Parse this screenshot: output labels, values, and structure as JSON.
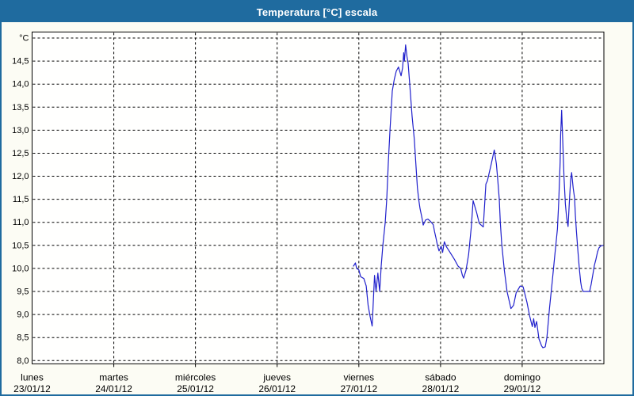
{
  "window": {
    "title": "Temperatura [°C] escala"
  },
  "colors": {
    "frame_blue": "#1f6b9f",
    "title_text": "#ffffff",
    "panel_background": "#fcfcf4",
    "plot_background": "#fffffe",
    "grid_black": "#000000",
    "series_blue": "#2020cc"
  },
  "chart_data": {
    "type": "line",
    "title": "Temperatura [°C] escala",
    "ylabel": "°C",
    "unit_label": "°C",
    "ylim": [
      7.93,
      15.13
    ],
    "y_grid_min": 8.0,
    "y_grid_max": 15.0,
    "y_grid_step": 0.5,
    "y_tick_labels": [
      "14,5",
      "14,0",
      "13,5",
      "13,0",
      "12,5",
      "12,0",
      "11,5",
      "11,0",
      "10,5",
      "10,0",
      "9,5",
      "9,0",
      "8,5",
      "8,0"
    ],
    "x_days": [
      {
        "name": "lunes",
        "date": "23/01/12"
      },
      {
        "name": "martes",
        "date": "24/01/12"
      },
      {
        "name": "miércoles",
        "date": "25/01/12"
      },
      {
        "name": "jueves",
        "date": "26/01/12"
      },
      {
        "name": "viernes",
        "date": "27/01/12"
      },
      {
        "name": "sábado",
        "date": "28/01/12"
      },
      {
        "name": "domingo",
        "date": "29/01/12"
      }
    ],
    "x_range_days": [
      0,
      7
    ],
    "grid": "dashed",
    "legend": "none",
    "series": [
      {
        "name": "Temperatura",
        "color": "#2020cc",
        "x_unit": "days since lunes 23/01/12 00:00",
        "points": [
          [
            3.934,
            10.05
          ],
          [
            3.958,
            10.12
          ],
          [
            3.973,
            10.0
          ],
          [
            4.0,
            9.97
          ],
          [
            4.022,
            9.82
          ],
          [
            4.061,
            9.78
          ],
          [
            4.09,
            9.62
          ],
          [
            4.114,
            9.2
          ],
          [
            4.139,
            8.95
          ],
          [
            4.163,
            8.75
          ],
          [
            4.192,
            9.85
          ],
          [
            4.211,
            9.5
          ],
          [
            4.233,
            9.9
          ],
          [
            4.255,
            9.5
          ],
          [
            4.274,
            10.05
          ],
          [
            4.294,
            10.5
          ],
          [
            4.323,
            11.0
          ],
          [
            4.342,
            11.5
          ],
          [
            4.361,
            12.3
          ],
          [
            4.381,
            13.0
          ],
          [
            4.41,
            13.85
          ],
          [
            4.434,
            14.1
          ],
          [
            4.458,
            14.28
          ],
          [
            4.485,
            14.37
          ],
          [
            4.517,
            14.18
          ],
          [
            4.536,
            14.35
          ],
          [
            4.549,
            14.68
          ],
          [
            4.558,
            14.5
          ],
          [
            4.573,
            14.85
          ],
          [
            4.589,
            14.6
          ],
          [
            4.604,
            14.45
          ],
          [
            4.623,
            14.0
          ],
          [
            4.652,
            13.3
          ],
          [
            4.679,
            12.8
          ],
          [
            4.701,
            12.2
          ],
          [
            4.717,
            11.75
          ],
          [
            4.733,
            11.5
          ],
          [
            4.749,
            11.3
          ],
          [
            4.772,
            11.1
          ],
          [
            4.788,
            10.94
          ],
          [
            4.817,
            11.05
          ],
          [
            4.846,
            11.07
          ],
          [
            4.878,
            11.02
          ],
          [
            4.911,
            10.95
          ],
          [
            4.927,
            10.8
          ],
          [
            4.943,
            10.67
          ],
          [
            4.963,
            10.5
          ],
          [
            4.982,
            10.38
          ],
          [
            5.008,
            10.48
          ],
          [
            5.026,
            10.35
          ],
          [
            5.047,
            10.58
          ],
          [
            5.072,
            10.47
          ],
          [
            5.105,
            10.38
          ],
          [
            5.137,
            10.29
          ],
          [
            5.169,
            10.2
          ],
          [
            5.215,
            10.05
          ],
          [
            5.247,
            10.0
          ],
          [
            5.268,
            9.85
          ],
          [
            5.283,
            9.79
          ],
          [
            5.312,
            9.96
          ],
          [
            5.344,
            10.3
          ],
          [
            5.377,
            10.9
          ],
          [
            5.399,
            11.47
          ],
          [
            5.441,
            11.22
          ],
          [
            5.474,
            10.98
          ],
          [
            5.523,
            10.9
          ],
          [
            5.555,
            11.83
          ],
          [
            5.574,
            11.9
          ],
          [
            5.62,
            12.26
          ],
          [
            5.658,
            12.57
          ],
          [
            5.684,
            12.26
          ],
          [
            5.7,
            11.94
          ],
          [
            5.719,
            11.5
          ],
          [
            5.732,
            11.0
          ],
          [
            5.749,
            10.53
          ],
          [
            5.781,
            9.96
          ],
          [
            5.814,
            9.5
          ],
          [
            5.862,
            9.13
          ],
          [
            5.894,
            9.2
          ],
          [
            5.926,
            9.47
          ],
          [
            5.975,
            9.62
          ],
          [
            6.011,
            9.6
          ],
          [
            6.059,
            9.26
          ],
          [
            6.091,
            8.97
          ],
          [
            6.124,
            8.74
          ],
          [
            6.14,
            8.91
          ],
          [
            6.156,
            8.72
          ],
          [
            6.176,
            8.85
          ],
          [
            6.205,
            8.47
          ],
          [
            6.237,
            8.32
          ],
          [
            6.253,
            8.28
          ],
          [
            6.282,
            8.3
          ],
          [
            6.302,
            8.5
          ],
          [
            6.334,
            9.14
          ],
          [
            6.367,
            9.71
          ],
          [
            6.399,
            10.29
          ],
          [
            6.431,
            10.86
          ],
          [
            6.447,
            11.44
          ],
          [
            6.464,
            12.3
          ],
          [
            6.47,
            12.87
          ],
          [
            6.483,
            13.43
          ],
          [
            6.496,
            12.76
          ],
          [
            6.512,
            11.97
          ],
          [
            6.528,
            11.4
          ],
          [
            6.544,
            11.1
          ],
          [
            6.561,
            10.91
          ],
          [
            6.576,
            11.4
          ],
          [
            6.593,
            11.91
          ],
          [
            6.605,
            12.08
          ],
          [
            6.625,
            11.74
          ],
          [
            6.641,
            11.53
          ],
          [
            6.651,
            11.16
          ],
          [
            6.663,
            10.82
          ],
          [
            6.683,
            10.36
          ],
          [
            6.699,
            10.0
          ],
          [
            6.716,
            9.71
          ],
          [
            6.728,
            9.57
          ],
          [
            6.748,
            9.5
          ],
          [
            6.825,
            9.5
          ],
          [
            6.845,
            9.66
          ],
          [
            6.867,
            9.89
          ],
          [
            6.883,
            10.06
          ],
          [
            6.903,
            10.2
          ],
          [
            6.922,
            10.36
          ],
          [
            6.941,
            10.45
          ],
          [
            6.964,
            10.49
          ],
          [
            6.99,
            10.5
          ]
        ]
      }
    ]
  }
}
